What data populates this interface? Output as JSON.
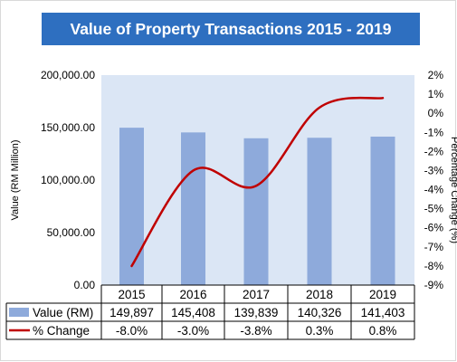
{
  "chart_data": {
    "type": "bar",
    "title": "Value of Property Transactions 2015 - 2019",
    "categories": [
      "2015",
      "2016",
      "2017",
      "2018",
      "2019"
    ],
    "series": [
      {
        "name": "Value (RM)",
        "type": "bar",
        "axis": "left",
        "values": [
          149897,
          145408,
          139839,
          140326,
          141403
        ],
        "display": [
          "149,897",
          "145,408",
          "139,839",
          "140,326",
          "141,403"
        ]
      },
      {
        "name": "% Change",
        "type": "line",
        "axis": "right",
        "values": [
          -8.0,
          -3.0,
          -3.8,
          0.3,
          0.8
        ],
        "display": [
          "-8.0%",
          "-3.0%",
          "-3.8%",
          "0.3%",
          "0.8%"
        ]
      }
    ],
    "ylabel": "Value (RM Million)",
    "y2label": "Percentage Change (%)",
    "ylim": [
      0,
      200000
    ],
    "y2lim": [
      -9,
      2
    ],
    "yticks": [
      "0.00",
      "50,000.00",
      "100,000.00",
      "150,000.00",
      "200,000.00"
    ],
    "y2ticks": [
      "-9%",
      "-8%",
      "-7%",
      "-6%",
      "-5%",
      "-4%",
      "-3%",
      "-2%",
      "-1%",
      "0%",
      "1%",
      "2%"
    ],
    "grid": false,
    "legend": "data-table",
    "colors": {
      "bar": "#8eaadb",
      "line": "#c00000",
      "plot_bg": "#dbe6f5",
      "title_bg": "#2e6fc0"
    }
  }
}
